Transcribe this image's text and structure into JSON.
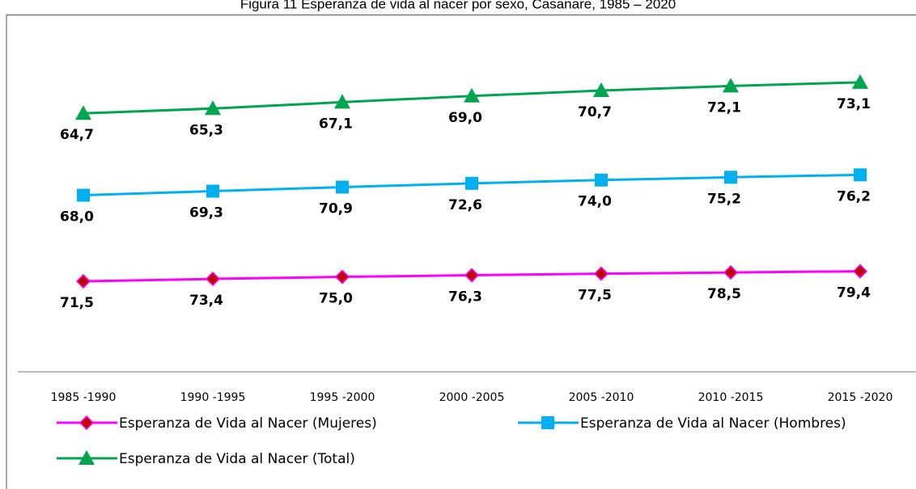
{
  "chart_data": {
    "type": "line",
    "stacked": true,
    "title": "Figura 11 Esperanza de vida al nacer por sexo, Casanare, 1985 – 2020",
    "categories": [
      "1985 -1990",
      "1990 -1995",
      "1995 -2000",
      "2000 -2005",
      "2005 -2010",
      "2010 -2015",
      "2015 -2020"
    ],
    "ylim": [
      0,
      265
    ],
    "series": [
      {
        "name": "Esperanza de Vida al Nacer (Mujeres)",
        "color": "#ff00ff",
        "marker": "diamond",
        "marker_color": "#c00000",
        "values": [
          71.5,
          73.4,
          75.0,
          76.3,
          77.5,
          78.5,
          79.4
        ],
        "value_labels": [
          "71,5",
          "73,4",
          "75,0",
          "76,3",
          "77,5",
          "78,5",
          "79,4"
        ]
      },
      {
        "name": "Esperanza de Vida al Nacer (Hombres)",
        "color": "#00b0f0",
        "marker": "square",
        "marker_color": "#00b0f0",
        "values": [
          68.0,
          69.3,
          70.9,
          72.6,
          74.0,
          75.2,
          76.2
        ],
        "value_labels": [
          "68,0",
          "69,3",
          "70,9",
          "72,6",
          "74,0",
          "75,2",
          "76,2"
        ]
      },
      {
        "name": "Esperanza de Vida al Nacer (Total)",
        "color": "#00a550",
        "marker": "triangle",
        "marker_color": "#00a550",
        "values": [
          64.7,
          65.3,
          67.1,
          69.0,
          70.7,
          72.1,
          73.1
        ],
        "value_labels": [
          "64,7",
          "65,3",
          "67,1",
          "69,0",
          "70,7",
          "72,1",
          "73,1"
        ]
      }
    ]
  }
}
